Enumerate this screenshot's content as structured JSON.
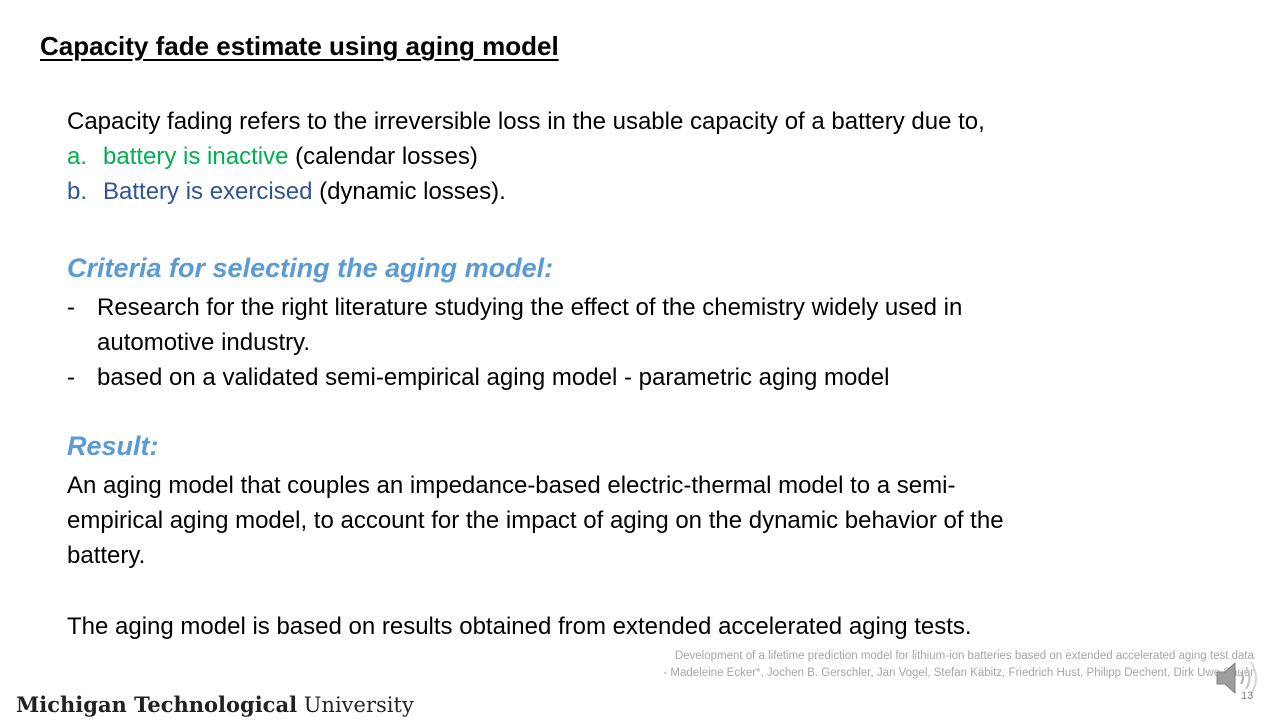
{
  "slide": {
    "title": "Capacity fade estimate using aging model",
    "intro": "Capacity fading refers to the irreversible loss in the usable capacity of a battery due to,",
    "items": [
      {
        "marker": "a.",
        "highlight": "battery is inactive",
        "rest": " (calendar losses)",
        "color": "#00b050"
      },
      {
        "marker": "b.",
        "highlight": "Battery is exercised",
        "rest": " (dynamic losses).",
        "color": "#2f5597"
      }
    ],
    "criteria_heading": "Criteria for selecting the aging model:",
    "bullets": [
      {
        "dash": "-",
        "line1": "Research for the right literature studying the effect of the chemistry widely used in",
        "line2": "automotive industry."
      },
      {
        "dash": "-",
        "line1": "based on a validated semi-empirical aging model - parametric aging model"
      }
    ],
    "result_heading": "Result:",
    "result_lines": [
      "An aging model that couples an impedance-based electric-thermal model to a semi-",
      "empirical aging model, to account for the impact of aging on the dynamic behavior of the",
      "battery."
    ],
    "conclusion": "The aging model is based on results obtained from extended accelerated aging tests.",
    "citation_line1": "Development of a lifetime prediction model for lithium-ion batteries based on extended accelerated aging test data",
    "citation_line2": "- Madeleine Ecker*, Jochen B. Gerschler, Jan Vogel, Stefan Käbitz, Friedrich Hust, Philipp Dechent, Dirk Uwe Sauer",
    "page_number": "13"
  },
  "footer": {
    "logo_bold": "Michigan Technological",
    "logo_regular": " University"
  },
  "colors": {
    "heading": "#5b9bd5",
    "green": "#00b050",
    "blue": "#2f5597"
  },
  "icons": {
    "audio": "speaker-icon"
  }
}
